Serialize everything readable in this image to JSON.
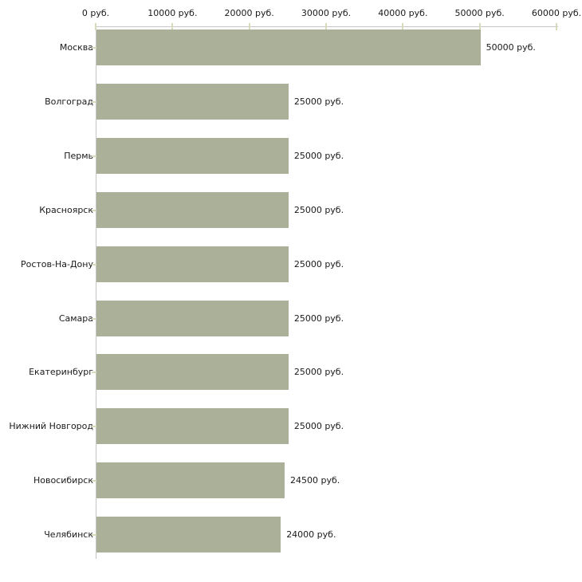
{
  "chart_data": {
    "type": "bar",
    "orientation": "horizontal",
    "title": "",
    "xlabel": "",
    "ylabel": "",
    "unit": "руб.",
    "categories": [
      "Москва",
      "Волгоград",
      "Пермь",
      "Красноярск",
      "Ростов-На-Дону",
      "Самара",
      "Екатеринбург",
      "Нижний Новгород",
      "Новосибирск",
      "Челябинск"
    ],
    "values": [
      50000,
      25000,
      25000,
      25000,
      25000,
      25000,
      25000,
      25000,
      24500,
      24000
    ],
    "value_labels": [
      "50000 руб.",
      "25000 руб.",
      "25000 руб.",
      "25000 руб.",
      "25000 руб.",
      "25000 руб.",
      "25000 руб.",
      "25000 руб.",
      "24500 руб.",
      "24000 руб."
    ],
    "x_axis": {
      "position": "top",
      "min": 0,
      "max": 60000,
      "tick_values": [
        0,
        10000,
        20000,
        30000,
        40000,
        50000,
        60000
      ],
      "tick_labels": [
        "0 руб.",
        "10000 руб.",
        "20000 руб.",
        "30000 руб.",
        "40000 руб.",
        "50000 руб.",
        "60000 руб."
      ]
    },
    "grid": false,
    "legend": false,
    "colors": {
      "bar": "#abb199",
      "axis_line": "#c6c6c6",
      "tick_mark": "#d9dabc",
      "text": "#1a1a1a",
      "background": "#ffffff"
    }
  }
}
